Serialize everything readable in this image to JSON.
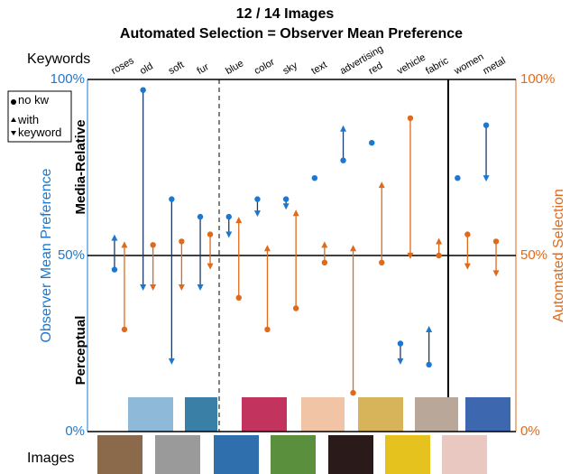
{
  "chart_data": {
    "type": "arrow-dot",
    "title": "12 / 14 Images",
    "subtitle": "Automated Selection = Observer Mean Preference",
    "x_label_top": "Keywords",
    "x_label_bottom": "Images",
    "y_label": "Observer Mean Preference",
    "y2_label": "Automated Selection",
    "annotations": [
      "Media-Relative",
      "Perceptual"
    ],
    "categories": [
      "roses",
      "old",
      "soft",
      "fur",
      "blue",
      "color",
      "sky",
      "text",
      "advertising",
      "red",
      "vehicle",
      "fabric",
      "women",
      "metal"
    ],
    "series": [
      {
        "name": "no kw",
        "color": "#1a78d2",
        "axis": "y",
        "values": [
          46,
          97,
          66,
          61,
          61,
          66,
          66,
          72,
          77,
          82,
          25,
          19,
          72,
          87
        ]
      },
      {
        "name": "with keyword",
        "color": "#1a78d2",
        "axis": "y",
        "values": [
          56,
          40,
          19,
          40,
          55,
          61,
          63,
          null,
          87,
          null,
          19,
          30,
          null,
          71
        ]
      },
      {
        "name": "no kw",
        "color": "#e06a1b",
        "axis": "y2",
        "values": [
          29,
          53,
          54,
          56,
          38,
          29,
          35,
          48,
          11,
          48,
          89,
          50,
          56,
          54
        ]
      },
      {
        "name": "with keyword",
        "color": "#e06a1b",
        "axis": "y2",
        "values": [
          54,
          40,
          40,
          46,
          61,
          53,
          63,
          54,
          53,
          71,
          49,
          55,
          46,
          44
        ]
      }
    ],
    "ylim": [
      0,
      100
    ],
    "yticks": [
      {
        "value": 0,
        "label": "0%"
      },
      {
        "value": 50,
        "label": "50%"
      },
      {
        "value": 100,
        "label": "100%"
      }
    ],
    "y2lim": [
      0,
      100
    ],
    "y2ticks": [
      {
        "value": 0,
        "label": "0%"
      },
      {
        "value": 50,
        "label": "50%"
      },
      {
        "value": 100,
        "label": "100%"
      }
    ],
    "grid": true
  }
}
